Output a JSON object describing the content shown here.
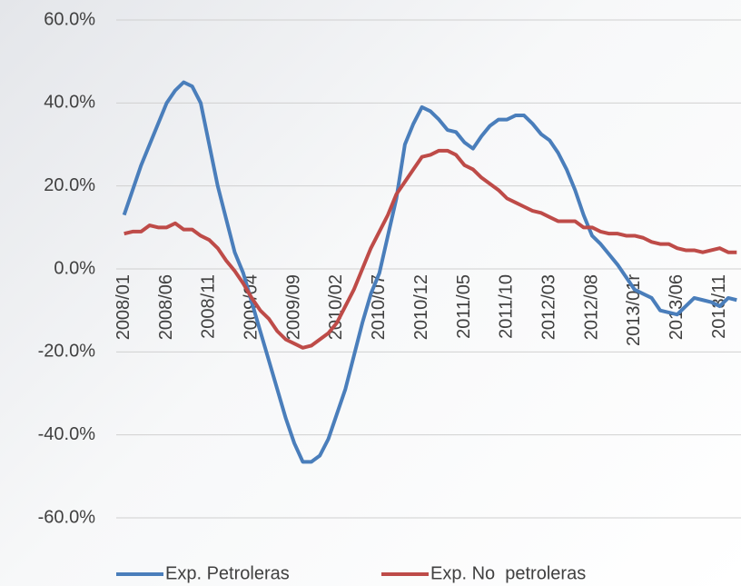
{
  "chart_data": {
    "type": "line",
    "categories": [
      "2008/01",
      null,
      null,
      null,
      null,
      "2008/06",
      null,
      null,
      null,
      null,
      "2008/11",
      null,
      null,
      null,
      null,
      "2009/04",
      null,
      null,
      null,
      null,
      "2009/09",
      null,
      null,
      null,
      null,
      "2010/02",
      null,
      null,
      null,
      null,
      "2010/07",
      null,
      null,
      null,
      null,
      "2010/12",
      null,
      null,
      null,
      null,
      "2011/05",
      null,
      null,
      null,
      null,
      "2011/10",
      null,
      null,
      null,
      null,
      "2012/03",
      null,
      null,
      null,
      null,
      "2012/08",
      null,
      null,
      null,
      null,
      "2013/01r",
      null,
      null,
      null,
      null,
      "2013/06",
      null,
      null,
      null,
      null,
      "2013/11",
      null,
      null
    ],
    "series": [
      {
        "name": "Exp. Petroleras",
        "color": "#4a7ebb",
        "values": [
          13,
          19,
          25,
          30,
          35,
          40,
          43,
          45,
          44,
          40,
          30,
          20,
          12,
          4,
          -1,
          -8,
          -15,
          -22,
          -29,
          -36,
          -42,
          -46.5,
          -46.5,
          -45,
          -41,
          -35,
          -29,
          -21,
          -13,
          -6,
          -1,
          8,
          17,
          30,
          35,
          39,
          38,
          36,
          33.5,
          33,
          30.5,
          29,
          32,
          34.5,
          36,
          36,
          37,
          37,
          35,
          32.5,
          31,
          28,
          24,
          19,
          13,
          8,
          6,
          3.5,
          1,
          -2,
          -5,
          -6,
          -7,
          -10,
          -10.5,
          -11,
          -9,
          -7,
          -7.5,
          -8,
          -9,
          -7,
          -7.5
        ]
      },
      {
        "name": "Exp. No  petroleras",
        "color": "#be4b48",
        "values": [
          8.5,
          9,
          9,
          10.5,
          10,
          10,
          11,
          9.5,
          9.5,
          8,
          7,
          5,
          2,
          -0.5,
          -3.5,
          -7,
          -10,
          -12,
          -15,
          -17,
          -18,
          -19,
          -18.5,
          -17,
          -15.5,
          -13,
          -9,
          -5,
          0,
          5,
          9,
          13,
          18,
          21,
          24,
          27,
          27.5,
          28.5,
          28.5,
          27.5,
          25,
          24,
          22,
          20.5,
          19,
          17,
          16,
          15,
          14,
          13.5,
          12.5,
          11.5,
          11.5,
          11.5,
          10,
          10,
          9,
          8.5,
          8.5,
          8,
          8,
          7.5,
          6.5,
          6,
          6,
          5,
          4.5,
          4.5,
          4,
          4.5,
          5,
          4,
          4
        ]
      }
    ],
    "ylim": [
      -60,
      60
    ],
    "yticks": [
      {
        "value": -60,
        "label": "-60.0%"
      },
      {
        "value": -40,
        "label": "-40.0%"
      },
      {
        "value": -20,
        "label": "-20.0%"
      },
      {
        "value": 0,
        "label": "0.0%"
      },
      {
        "value": 20,
        "label": "20.0%"
      },
      {
        "value": 40,
        "label": "40.0%"
      },
      {
        "value": 60,
        "label": "60.0%"
      }
    ],
    "grid": true,
    "legend": "bottom"
  }
}
